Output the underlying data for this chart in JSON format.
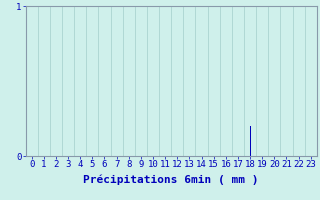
{
  "title": "",
  "xlabel": "Précipitations 6min ( mm )",
  "ylabel": "",
  "bg_color": "#cff0eb",
  "bar_color": "#0000bb",
  "axis_color": "#0000bb",
  "label_color": "#0000bb",
  "grid_color": "#b0d8d4",
  "spine_color": "#8899aa",
  "hours": [
    0,
    1,
    2,
    3,
    4,
    5,
    6,
    7,
    8,
    9,
    10,
    11,
    12,
    13,
    14,
    15,
    16,
    17,
    18,
    19,
    20,
    21,
    22,
    23
  ],
  "values": [
    0,
    0,
    0,
    0,
    0,
    0,
    0,
    0,
    0,
    0,
    0,
    0,
    0,
    0,
    0,
    0,
    0,
    0,
    0.2,
    0,
    0,
    0,
    0,
    0
  ],
  "xlim": [
    0,
    24
  ],
  "ylim": [
    0,
    1
  ],
  "yticks": [
    0,
    1
  ],
  "xticks": [
    0,
    1,
    2,
    3,
    4,
    5,
    6,
    7,
    8,
    9,
    10,
    11,
    12,
    13,
    14,
    15,
    16,
    17,
    18,
    19,
    20,
    21,
    22,
    23
  ],
  "bar_width": 0.08,
  "xlabel_fontsize": 8,
  "tick_fontsize": 6.5
}
